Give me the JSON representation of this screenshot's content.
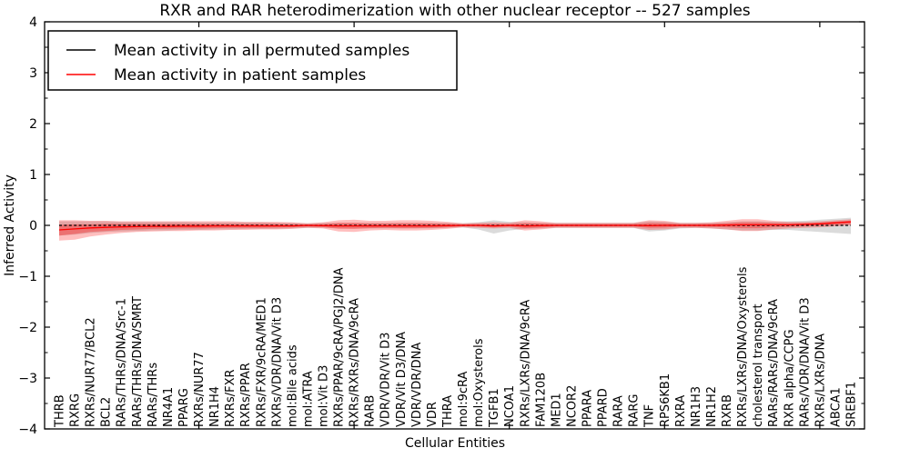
{
  "chart_data": {
    "type": "line",
    "title": "RXR and RAR heterodimerization with other nuclear receptor -- 527 samples",
    "xlabel": "Cellular Entities",
    "ylabel": "Inferred Activity",
    "ylim": [
      -4,
      4
    ],
    "ytick_values": [
      -4,
      -3,
      -2,
      -1,
      0,
      1,
      2,
      3,
      4
    ],
    "minor_ytick_step": 0.5,
    "xtick_indices": [
      9,
      19,
      29,
      39,
      49
    ],
    "grid": false,
    "legend_position": "upper left",
    "categories": [
      "THRB",
      "RXRG",
      "RXRs/NUR77/BCL2",
      "BCL2",
      "RARs/THRs/DNA/Src-1",
      "RARs/THRs/DNA/SMRT",
      "RARs/THRs",
      "NR4A1",
      "PPARG",
      "RXRs/NUR77",
      "NR1H4",
      "RXRs/FXR",
      "RXRs/PPAR",
      "RXRs/FXR/9cRA/MED1",
      "RXRs/VDR/DNA/Vit D3",
      "mol:Bile acids",
      "mol:ATRA",
      "mol:Vit D3",
      "RXRs/PPAR/9cRA/PGJ2/DNA",
      "RXRs/RXRs/DNA/9cRA",
      "RARB",
      "VDR/VDR/Vit D3",
      "VDR/Vit D3/DNA",
      "VDR/VDR/DNA",
      "VDR",
      "THRA",
      "mol:9cRA",
      "mol:Oxysterols",
      "TGFB1",
      "NCOA1",
      "RXRs/LXRs/DNA/9cRA",
      "FAM120B",
      "MED1",
      "NCOR2",
      "PPARA",
      "PPARD",
      "RARA",
      "RARG",
      "TNF",
      "RPS6KB1",
      "RXRA",
      "NR1H3",
      "NR1H2",
      "RXRB",
      "RXRs/LXRs/DNA/Oxysterols",
      "cholesterol transport",
      "RARs/RARs/DNA/9cRA",
      "RXR alpha/CCPG",
      "RARs/VDR/DNA/Vit D3",
      "RXRs/LXRs/DNA",
      "ABCA1",
      "SREBF1"
    ],
    "series": [
      {
        "name": "Mean activity in all permuted samples",
        "color": "#000000",
        "style": "dashed",
        "values": [
          0,
          0,
          0,
          0,
          0,
          0,
          0,
          0,
          0,
          0,
          0,
          0,
          0,
          0,
          0,
          0,
          0,
          0,
          0,
          0,
          0,
          0,
          0,
          0,
          0,
          0,
          0,
          0,
          0,
          0,
          0,
          0,
          0,
          0,
          0,
          0,
          0,
          0,
          0,
          0,
          0,
          0,
          0,
          0,
          0,
          0,
          0,
          0,
          0,
          0,
          0,
          0
        ]
      },
      {
        "name": "Mean activity in patient samples",
        "color": "#ff0000",
        "style": "solid",
        "values": [
          -0.09,
          -0.07,
          -0.05,
          -0.04,
          -0.03,
          -0.025,
          -0.02,
          -0.02,
          -0.015,
          -0.015,
          -0.01,
          -0.01,
          -0.01,
          -0.01,
          -0.01,
          -0.01,
          0,
          -0.005,
          -0.01,
          -0.01,
          -0.01,
          -0.01,
          -0.01,
          -0.01,
          -0.01,
          -0.005,
          0,
          0,
          -0.01,
          0,
          -0.01,
          -0.005,
          0,
          0,
          0,
          0,
          0,
          0,
          -0.005,
          0,
          0,
          0,
          0,
          0.005,
          0.01,
          0.01,
          0.01,
          0.01,
          0.02,
          0.03,
          0.05,
          0.07
        ]
      }
    ],
    "bands": [
      {
        "name": "permuted-sample-range",
        "color": "#b0b0b0",
        "opacity": 0.45,
        "upper": [
          0.08,
          0.08,
          0.08,
          0.08,
          0.07,
          0.07,
          0.07,
          0.07,
          0.07,
          0.06,
          0.06,
          0.06,
          0.06,
          0.06,
          0.05,
          0.05,
          0.04,
          0.05,
          0.05,
          0.05,
          0.05,
          0.05,
          0.05,
          0.05,
          0.05,
          0.05,
          0.04,
          0.06,
          0.1,
          0.07,
          0.06,
          0.05,
          0.05,
          0.05,
          0.05,
          0.05,
          0.05,
          0.05,
          0.08,
          0.07,
          0.05,
          0.05,
          0.05,
          0.06,
          0.08,
          0.08,
          0.07,
          0.08,
          0.09,
          0.11,
          0.13,
          0.15
        ],
        "lower": [
          -0.2,
          -0.18,
          -0.15,
          -0.13,
          -0.12,
          -0.11,
          -0.1,
          -0.1,
          -0.09,
          -0.09,
          -0.08,
          -0.08,
          -0.07,
          -0.07,
          -0.07,
          -0.06,
          -0.05,
          -0.05,
          -0.06,
          -0.06,
          -0.06,
          -0.06,
          -0.06,
          -0.06,
          -0.06,
          -0.05,
          -0.04,
          -0.08,
          -0.16,
          -0.1,
          -0.07,
          -0.06,
          -0.05,
          -0.05,
          -0.05,
          -0.05,
          -0.05,
          -0.05,
          -0.12,
          -0.1,
          -0.06,
          -0.05,
          -0.06,
          -0.08,
          -0.1,
          -0.1,
          -0.09,
          -0.09,
          -0.11,
          -0.13,
          -0.15,
          -0.17
        ]
      },
      {
        "name": "patient-sample-range-outer",
        "color": "#ff0000",
        "opacity": 0.25,
        "upper": [
          0.1,
          0.1,
          0.09,
          0.09,
          0.08,
          0.08,
          0.08,
          0.08,
          0.08,
          0.08,
          0.08,
          0.08,
          0.07,
          0.07,
          0.07,
          0.06,
          0.04,
          0.06,
          0.1,
          0.11,
          0.09,
          0.09,
          0.1,
          0.1,
          0.09,
          0.07,
          0.04,
          0.05,
          0.06,
          0.05,
          0.1,
          0.08,
          0.05,
          0.05,
          0.05,
          0.05,
          0.05,
          0.05,
          0.1,
          0.09,
          0.05,
          0.05,
          0.06,
          0.09,
          0.12,
          0.12,
          0.09,
          0.07,
          0.07,
          0.08,
          0.1,
          0.12
        ],
        "lower": [
          -0.3,
          -0.28,
          -0.22,
          -0.18,
          -0.15,
          -0.13,
          -0.12,
          -0.11,
          -0.11,
          -0.1,
          -0.1,
          -0.09,
          -0.09,
          -0.08,
          -0.08,
          -0.07,
          -0.05,
          -0.06,
          -0.12,
          -0.13,
          -0.1,
          -0.09,
          -0.1,
          -0.1,
          -0.09,
          -0.07,
          -0.04,
          -0.05,
          -0.06,
          -0.05,
          -0.1,
          -0.08,
          -0.05,
          -0.05,
          -0.05,
          -0.05,
          -0.05,
          -0.05,
          -0.09,
          -0.08,
          -0.05,
          -0.05,
          -0.06,
          -0.08,
          -0.11,
          -0.11,
          -0.08,
          -0.06,
          -0.05,
          -0.04,
          -0.02,
          0.0
        ]
      },
      {
        "name": "patient-sample-range-inner",
        "color": "#ff0000",
        "opacity": 0.3,
        "upper": [
          0.01,
          0.02,
          0.02,
          0.03,
          0.03,
          0.03,
          0.03,
          0.03,
          0.03,
          0.03,
          0.03,
          0.03,
          0.03,
          0.03,
          0.03,
          0.025,
          0.02,
          0.025,
          0.05,
          0.05,
          0.04,
          0.04,
          0.045,
          0.045,
          0.04,
          0.03,
          0.02,
          0.025,
          0.025,
          0.025,
          0.045,
          0.04,
          0.025,
          0.025,
          0.025,
          0.025,
          0.025,
          0.025,
          0.05,
          0.045,
          0.025,
          0.025,
          0.03,
          0.045,
          0.06,
          0.06,
          0.05,
          0.04,
          0.045,
          0.055,
          0.075,
          0.095
        ],
        "lower": [
          -0.2,
          -0.17,
          -0.13,
          -0.11,
          -0.09,
          -0.08,
          -0.07,
          -0.065,
          -0.06,
          -0.06,
          -0.055,
          -0.05,
          -0.05,
          -0.05,
          -0.045,
          -0.04,
          -0.025,
          -0.035,
          -0.065,
          -0.07,
          -0.055,
          -0.05,
          -0.055,
          -0.055,
          -0.05,
          -0.04,
          -0.02,
          -0.025,
          -0.04,
          -0.025,
          -0.055,
          -0.045,
          -0.025,
          -0.025,
          -0.025,
          -0.025,
          -0.025,
          -0.025,
          -0.05,
          -0.045,
          -0.025,
          -0.025,
          -0.03,
          -0.04,
          -0.055,
          -0.055,
          -0.04,
          -0.03,
          -0.02,
          -0.01,
          0.005,
          0.025
        ]
      }
    ]
  }
}
